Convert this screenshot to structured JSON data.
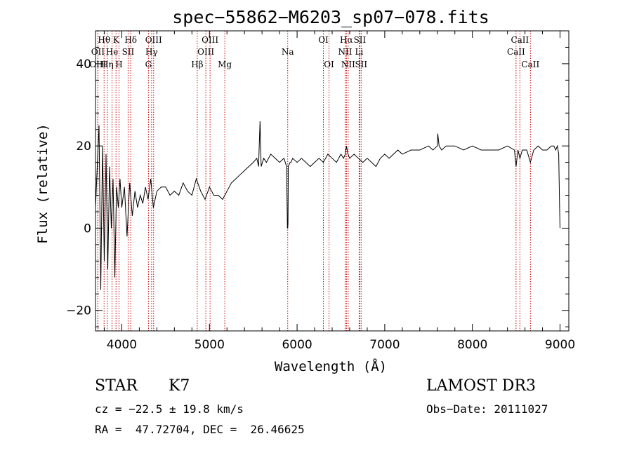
{
  "chart_data": {
    "type": "line",
    "title": "spec−55862−M6203_sp07−078.fits",
    "xlabel": "Wavelength (Å)",
    "ylabel": "Flux (relative)",
    "xlim": [
      3700,
      9100
    ],
    "ylim": [
      -25,
      48
    ],
    "xticks": [
      4000,
      5000,
      6000,
      7000,
      8000,
      9000
    ],
    "yticks": [
      -20,
      0,
      20,
      40
    ],
    "xtick_labels": [
      "4000",
      "5000",
      "6000",
      "7000",
      "8000",
      "9000"
    ],
    "ytick_labels": [
      "−20",
      "0",
      "20",
      "40"
    ],
    "series": [
      {
        "name": "flux",
        "color": "#000000",
        "x": [
          3700,
          3720,
          3740,
          3760,
          3780,
          3800,
          3820,
          3840,
          3860,
          3880,
          3900,
          3920,
          3940,
          3960,
          3980,
          4000,
          4030,
          4060,
          4090,
          4120,
          4150,
          4180,
          4210,
          4240,
          4270,
          4300,
          4330,
          4360,
          4400,
          4450,
          4500,
          4550,
          4600,
          4650,
          4700,
          4750,
          4800,
          4850,
          4900,
          4950,
          5000,
          5050,
          5100,
          5150,
          5200,
          5250,
          5300,
          5350,
          5400,
          5450,
          5500,
          5540,
          5560,
          5577,
          5590,
          5620,
          5650,
          5700,
          5750,
          5800,
          5850,
          5880,
          5890,
          5893,
          5896,
          5900,
          5920,
          5930,
          5950,
          6000,
          6050,
          6100,
          6150,
          6200,
          6250,
          6300,
          6350,
          6400,
          6450,
          6500,
          6530,
          6550,
          6563,
          6580,
          6600,
          6650,
          6700,
          6750,
          6800,
          6850,
          6900,
          6950,
          7000,
          7050,
          7100,
          7150,
          7200,
          7300,
          7400,
          7500,
          7550,
          7600,
          7605,
          7620,
          7650,
          7700,
          7800,
          7900,
          8000,
          8100,
          8200,
          8300,
          8400,
          8480,
          8498,
          8520,
          8542,
          8570,
          8620,
          8662,
          8700,
          8750,
          8800,
          8850,
          8900,
          8930,
          8950,
          8970,
          8985,
          8995,
          9000
        ],
        "y": [
          5,
          15,
          25,
          -15,
          20,
          -8,
          18,
          -10,
          15,
          0,
          12,
          -12,
          10,
          5,
          12,
          5,
          10,
          -2,
          11,
          3,
          9,
          5,
          8,
          6,
          10,
          7,
          12,
          5,
          9,
          10,
          10,
          8,
          9,
          8,
          11,
          9,
          8,
          12,
          9,
          7,
          10,
          8,
          8,
          7,
          9,
          11,
          12,
          13,
          14,
          15,
          16,
          17,
          15,
          26,
          15,
          17,
          16,
          18,
          17,
          16,
          17,
          15,
          0,
          0,
          1,
          15,
          16,
          16,
          17,
          16,
          17,
          16,
          15,
          16,
          17,
          16,
          18,
          17,
          16,
          18,
          17,
          18,
          20,
          18,
          17,
          18,
          17,
          16,
          17,
          16,
          15,
          17,
          18,
          17,
          18,
          19,
          18,
          19,
          19,
          20,
          19,
          20,
          23,
          20,
          19,
          20,
          20,
          19,
          20,
          19,
          19,
          19,
          20,
          19,
          15,
          19,
          17,
          19,
          19,
          16,
          19,
          20,
          19,
          19,
          20,
          20,
          19,
          20,
          18,
          5,
          0
        ]
      }
    ],
    "spectral_lines": [
      {
        "label": "Hθ",
        "x": 3798,
        "row": 1
      },
      {
        "label": "OII",
        "x": 3727,
        "row": 2
      },
      {
        "label": "OIII",
        "x": 3727,
        "row": 3
      },
      {
        "label": "He",
        "x": 3889,
        "row": 2
      },
      {
        "label": "Hη",
        "x": 3835,
        "row": 3
      },
      {
        "label": "K",
        "x": 3934,
        "row": 1
      },
      {
        "label": "SII",
        "x": 4072,
        "row": 2
      },
      {
        "label": "H",
        "x": 3968,
        "row": 3
      },
      {
        "label": "Hδ",
        "x": 4102,
        "row": 1
      },
      {
        "label": "OIII",
        "x": 4363,
        "row": 1
      },
      {
        "label": "Hγ",
        "x": 4340,
        "row": 2
      },
      {
        "label": "G",
        "x": 4304,
        "row": 3
      },
      {
        "label": "Hβ",
        "x": 4861,
        "row": 3
      },
      {
        "label": "OIII",
        "x": 5007,
        "row": 1
      },
      {
        "label": "OIII",
        "x": 4959,
        "row": 2
      },
      {
        "label": "Mg",
        "x": 5175,
        "row": 3
      },
      {
        "label": "Na",
        "x": 5893,
        "row": 2
      },
      {
        "label": "OI",
        "x": 6300,
        "row": 1
      },
      {
        "label": "OI",
        "x": 6364,
        "row": 3
      },
      {
        "label": "Hα",
        "x": 6563,
        "row": 1
      },
      {
        "label": "NII",
        "x": 6548,
        "row": 2
      },
      {
        "label": "NII",
        "x": 6583,
        "row": 3
      },
      {
        "label": "SII",
        "x": 6716,
        "row": 1
      },
      {
        "label": "Li",
        "x": 6708,
        "row": 2
      },
      {
        "label": "SII",
        "x": 6731,
        "row": 3
      },
      {
        "label": "CaII",
        "x": 8542,
        "row": 1
      },
      {
        "label": "CaII",
        "x": 8498,
        "row": 2
      },
      {
        "label": "CaII",
        "x": 8662,
        "row": 3
      }
    ]
  },
  "info": {
    "object_class": "STAR",
    "subclass": "K7",
    "redshift_line": "cz = −22.5 ± 19.8 km/s",
    "coords_line": "RA =  47.72704, DEC =  26.46625",
    "survey": "LAMOST DR3",
    "obs_date": "Obs−Date: 20111027"
  },
  "colors": {
    "line_marker": "#cc0000",
    "spectrum": "#000000"
  }
}
